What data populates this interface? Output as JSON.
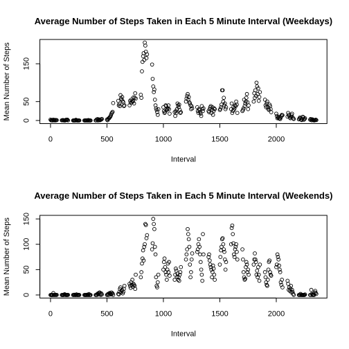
{
  "chart_data": [
    {
      "type": "scatter",
      "title": "Average Number of Steps Taken in Each 5 Minute Interval (Weekdays)",
      "x_label": "Interval",
      "y_label": "Mean Number of Steps",
      "xlim": [
        -94.2,
        2449.2
      ],
      "ylim": [
        -8.24,
        214.24
      ],
      "xticks": [
        0,
        500,
        1000,
        1500,
        2000
      ],
      "yticks": [
        0,
        50,
        150
      ],
      "color": "#000000",
      "x": [
        0,
        5,
        10,
        15,
        20,
        25,
        30,
        35,
        40,
        45,
        50,
        55,
        100,
        105,
        110,
        115,
        120,
        125,
        130,
        135,
        140,
        145,
        150,
        155,
        200,
        205,
        210,
        215,
        220,
        225,
        230,
        235,
        240,
        245,
        250,
        255,
        300,
        305,
        310,
        315,
        320,
        325,
        330,
        335,
        340,
        345,
        350,
        355,
        400,
        405,
        410,
        415,
        420,
        425,
        430,
        435,
        440,
        445,
        450,
        455,
        500,
        505,
        510,
        515,
        520,
        525,
        530,
        535,
        540,
        545,
        550,
        555,
        600,
        605,
        610,
        615,
        620,
        625,
        630,
        635,
        640,
        645,
        650,
        655,
        700,
        705,
        710,
        715,
        720,
        725,
        730,
        735,
        740,
        745,
        750,
        755,
        800,
        805,
        810,
        815,
        820,
        825,
        830,
        835,
        840,
        845,
        850,
        855,
        900,
        905,
        910,
        915,
        920,
        925,
        930,
        935,
        940,
        945,
        950,
        955,
        1000,
        1005,
        1010,
        1015,
        1020,
        1025,
        1030,
        1035,
        1040,
        1045,
        1050,
        1055,
        1100,
        1105,
        1110,
        1115,
        1120,
        1125,
        1130,
        1135,
        1140,
        1145,
        1150,
        1155,
        1200,
        1205,
        1210,
        1215,
        1220,
        1225,
        1230,
        1235,
        1240,
        1245,
        1250,
        1255,
        1300,
        1305,
        1310,
        1315,
        1320,
        1325,
        1330,
        1335,
        1340,
        1345,
        1350,
        1355,
        1400,
        1405,
        1410,
        1415,
        1420,
        1425,
        1430,
        1435,
        1440,
        1445,
        1450,
        1455,
        1500,
        1505,
        1510,
        1515,
        1520,
        1525,
        1530,
        1535,
        1540,
        1545,
        1550,
        1555,
        1600,
        1605,
        1610,
        1615,
        1620,
        1625,
        1630,
        1635,
        1640,
        1645,
        1650,
        1655,
        1700,
        1705,
        1710,
        1715,
        1720,
        1725,
        1730,
        1735,
        1740,
        1745,
        1750,
        1755,
        1800,
        1805,
        1810,
        1815,
        1820,
        1825,
        1830,
        1835,
        1840,
        1845,
        1850,
        1855,
        1900,
        1905,
        1910,
        1915,
        1920,
        1925,
        1930,
        1935,
        1940,
        1945,
        1950,
        1955,
        2000,
        2005,
        2010,
        2015,
        2020,
        2025,
        2030,
        2035,
        2040,
        2045,
        2050,
        2055,
        2100,
        2105,
        2110,
        2115,
        2120,
        2125,
        2130,
        2135,
        2140,
        2145,
        2150,
        2155,
        2200,
        2205,
        2210,
        2215,
        2220,
        2225,
        2230,
        2235,
        2240,
        2245,
        2250,
        2255,
        2300,
        2305,
        2310,
        2315,
        2320,
        2325,
        2330,
        2335,
        2340,
        2345,
        2350,
        2355
      ],
      "values": [
        2.3,
        0.5,
        0.2,
        0.2,
        0.1,
        2.4,
        0.5,
        0.8,
        0,
        1.5,
        0.4,
        0.9,
        0.4,
        0.4,
        1.2,
        0.4,
        0,
        0.1,
        0,
        1.4,
        2.2,
        1.1,
        2.1,
        0.3,
        0,
        0,
        0,
        0,
        0,
        1.8,
        0.4,
        0,
        0,
        0.1,
        0,
        0.1,
        0,
        0,
        0,
        0.3,
        0,
        0.1,
        0,
        1.2,
        0,
        0,
        0,
        0,
        0.1,
        0.5,
        2.9,
        3.6,
        0,
        3.2,
        1.2,
        0.6,
        0.9,
        3,
        2.5,
        4.2,
        2.6,
        0.5,
        3.4,
        5.6,
        6.1,
        8.6,
        10.3,
        13.6,
        18.2,
        20.5,
        22.9,
        46,
        52,
        40,
        44,
        38,
        67,
        58,
        55,
        62,
        51,
        48,
        38,
        40,
        40,
        52,
        47,
        55,
        48,
        52,
        50,
        61,
        45,
        60,
        72,
        58,
        68,
        60,
        130,
        155,
        170,
        178,
        160,
        206,
        198,
        182,
        165,
        175,
        148,
        110,
        90,
        75,
        82,
        55,
        40,
        32,
        28,
        22,
        15,
        30,
        35,
        25,
        20,
        22,
        40,
        38,
        28,
        30,
        32,
        40,
        30,
        18,
        22,
        12,
        25,
        20,
        30,
        45,
        40,
        35,
        42,
        28,
        20,
        22,
        50,
        58,
        65,
        70,
        55,
        62,
        48,
        45,
        40,
        30,
        38,
        32,
        35,
        25,
        20,
        30,
        28,
        22,
        18,
        12,
        38,
        30,
        25,
        32,
        25,
        22,
        30,
        35,
        38,
        20,
        28,
        35,
        15,
        25,
        32,
        30,
        28,
        30,
        35,
        42,
        80,
        80,
        50,
        60,
        40,
        45,
        30,
        35,
        30,
        45,
        20,
        25,
        35,
        28,
        32,
        40,
        38,
        50,
        42,
        20,
        25,
        28,
        32,
        55,
        38,
        45,
        50,
        60,
        70,
        48,
        30,
        40,
        50,
        72,
        60,
        80,
        65,
        100,
        90,
        70,
        85,
        52,
        62,
        75,
        55,
        40,
        35,
        45,
        50,
        35,
        30,
        28,
        42,
        38,
        30,
        22,
        18,
        12,
        6,
        8,
        10,
        5,
        6,
        4,
        8,
        12,
        15,
        14,
        10,
        20,
        15,
        12,
        8,
        6,
        10,
        14,
        18,
        8,
        5,
        4,
        3,
        5,
        8,
        6,
        2,
        1,
        4,
        10,
        8,
        2,
        4,
        6,
        2,
        4,
        1,
        0.5,
        3,
        2,
        1,
        0,
        0.5,
        1,
        2,
        1
      ]
    },
    {
      "type": "scatter",
      "title": "Average Number of Steps Taken in Each 5 Minute Interval (Weekends)",
      "x_label": "Interval",
      "y_label": "Mean Number of Steps",
      "xlim": [
        -94.2,
        2449.2
      ],
      "ylim": [
        -6.04,
        157.04
      ],
      "xticks": [
        0,
        500,
        1000,
        1500,
        2000
      ],
      "yticks": [
        0,
        50,
        100,
        150
      ],
      "color": "#000000",
      "x": [
        0,
        5,
        10,
        15,
        20,
        25,
        30,
        35,
        40,
        45,
        50,
        55,
        100,
        105,
        110,
        115,
        120,
        125,
        130,
        135,
        140,
        145,
        150,
        155,
        200,
        205,
        210,
        215,
        220,
        225,
        230,
        235,
        240,
        245,
        250,
        255,
        300,
        305,
        310,
        315,
        320,
        325,
        330,
        335,
        340,
        345,
        350,
        355,
        400,
        405,
        410,
        415,
        420,
        425,
        430,
        435,
        440,
        445,
        450,
        455,
        500,
        505,
        510,
        515,
        520,
        525,
        530,
        535,
        540,
        545,
        550,
        555,
        600,
        605,
        610,
        615,
        620,
        625,
        630,
        635,
        640,
        645,
        650,
        655,
        700,
        705,
        710,
        715,
        720,
        725,
        730,
        735,
        740,
        745,
        750,
        755,
        800,
        805,
        810,
        815,
        820,
        825,
        830,
        835,
        840,
        845,
        850,
        855,
        900,
        905,
        910,
        915,
        920,
        925,
        930,
        935,
        940,
        945,
        950,
        955,
        1000,
        1005,
        1010,
        1015,
        1020,
        1025,
        1030,
        1035,
        1040,
        1045,
        1050,
        1055,
        1100,
        1105,
        1110,
        1115,
        1120,
        1125,
        1130,
        1135,
        1140,
        1145,
        1150,
        1155,
        1200,
        1205,
        1210,
        1215,
        1220,
        1225,
        1230,
        1235,
        1240,
        1245,
        1250,
        1255,
        1300,
        1305,
        1310,
        1315,
        1320,
        1325,
        1330,
        1335,
        1340,
        1345,
        1350,
        1355,
        1400,
        1405,
        1410,
        1415,
        1420,
        1425,
        1430,
        1435,
        1440,
        1445,
        1450,
        1455,
        1500,
        1505,
        1510,
        1515,
        1520,
        1525,
        1530,
        1535,
        1540,
        1545,
        1550,
        1555,
        1600,
        1605,
        1610,
        1615,
        1620,
        1625,
        1630,
        1635,
        1640,
        1645,
        1650,
        1655,
        1700,
        1705,
        1710,
        1715,
        1720,
        1725,
        1730,
        1735,
        1740,
        1745,
        1750,
        1755,
        1800,
        1805,
        1810,
        1815,
        1820,
        1825,
        1830,
        1835,
        1840,
        1845,
        1850,
        1855,
        1900,
        1905,
        1910,
        1915,
        1920,
        1925,
        1930,
        1935,
        1940,
        1945,
        1950,
        1955,
        2000,
        2005,
        2010,
        2015,
        2020,
        2025,
        2030,
        2035,
        2040,
        2045,
        2050,
        2055,
        2100,
        2105,
        2110,
        2115,
        2120,
        2125,
        2130,
        2135,
        2140,
        2145,
        2150,
        2155,
        2200,
        2205,
        2210,
        2215,
        2220,
        2225,
        2230,
        2235,
        2240,
        2245,
        2250,
        2255,
        2300,
        2305,
        2310,
        2315,
        2320,
        2325,
        2330,
        2335,
        2340,
        2345,
        2350,
        2355
      ],
      "values": [
        0,
        0,
        0,
        0,
        0,
        3.7,
        0,
        0.2,
        0,
        0.4,
        0,
        0.1,
        0,
        0,
        0,
        0,
        0.3,
        1.5,
        0.2,
        0,
        0,
        0,
        0,
        0.1,
        0,
        0,
        0.5,
        0,
        0,
        0,
        1.2,
        0,
        0,
        0,
        0.3,
        0,
        0,
        0,
        0,
        0,
        0,
        0.6,
        0,
        0,
        1.8,
        0,
        0,
        0,
        0,
        0,
        0,
        2,
        3,
        1,
        4,
        5,
        2,
        0,
        3,
        1,
        0,
        1,
        2,
        0,
        3,
        4,
        2,
        1,
        5,
        2,
        3,
        0,
        2,
        1,
        6,
        12,
        15,
        5,
        8,
        10,
        3,
        6,
        12,
        18,
        22,
        18,
        14,
        25,
        20,
        30,
        16,
        22,
        20,
        18,
        12,
        40,
        35,
        45,
        62,
        72,
        88,
        68,
        95,
        100,
        140,
        138,
        112,
        118,
        90,
        102,
        150,
        140,
        130,
        95,
        80,
        35,
        18,
        15,
        25,
        40,
        50,
        65,
        72,
        55,
        45,
        40,
        30,
        50,
        62,
        45,
        65,
        38,
        30,
        40,
        52,
        48,
        35,
        42,
        30,
        35,
        28,
        40,
        45,
        55,
        70,
        80,
        90,
        130,
        120,
        110,
        95,
        60,
        35,
        45,
        70,
        82,
        85,
        90,
        100,
        110,
        95,
        80,
        65,
        50,
        40,
        28,
        120,
        80,
        75,
        80,
        68,
        60,
        55,
        50,
        35,
        45,
        58,
        52,
        40,
        30,
        60,
        75,
        88,
        95,
        110,
        112,
        100,
        90,
        85,
        70,
        50,
        65,
        100,
        132,
        137,
        120,
        102,
        80,
        75,
        90,
        95,
        100,
        85,
        70,
        90,
        70,
        45,
        35,
        30,
        32,
        55,
        65,
        60,
        45,
        50,
        40,
        60,
        70,
        82,
        70,
        65,
        40,
        48,
        35,
        55,
        40,
        28,
        60,
        45,
        35,
        25,
        20,
        18,
        30,
        50,
        65,
        68,
        45,
        40,
        38,
        55,
        60,
        80,
        75,
        70,
        58,
        50,
        45,
        25,
        20,
        30,
        15,
        28,
        22,
        10,
        15,
        8,
        12,
        18,
        5,
        10,
        6,
        2,
        0,
        0,
        0,
        0,
        2,
        0,
        0,
        0,
        0,
        0,
        0,
        0,
        1,
        0,
        0,
        10,
        2,
        0,
        1,
        0,
        0,
        5,
        8,
        4,
        2
      ]
    }
  ]
}
